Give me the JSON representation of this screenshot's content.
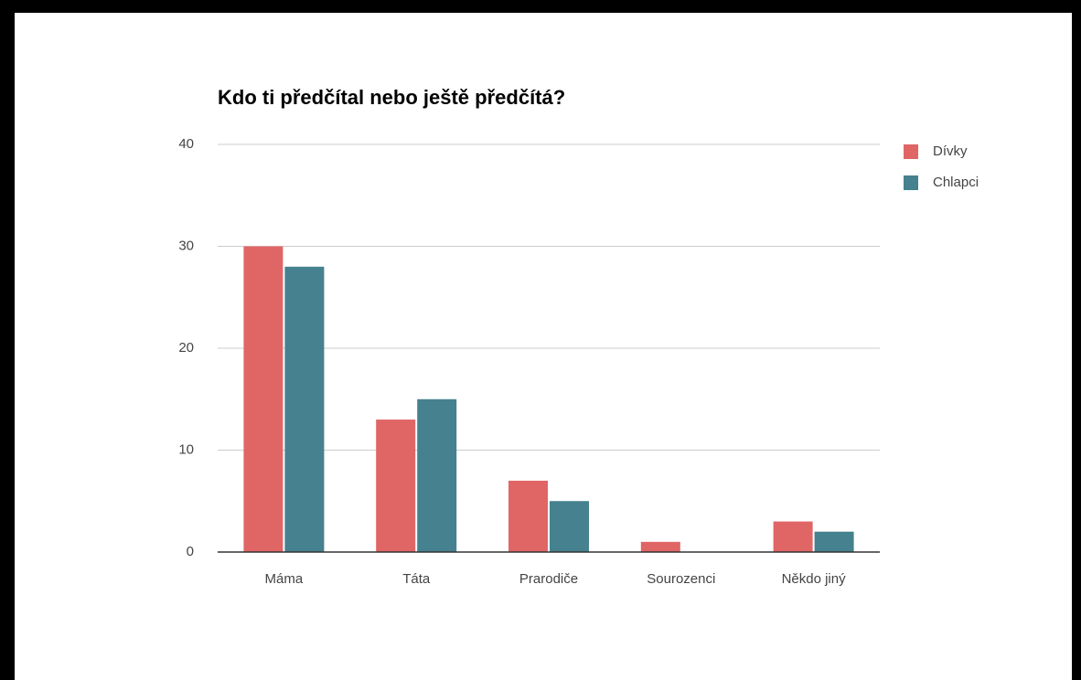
{
  "chart_data": {
    "type": "bar",
    "title": "Kdo ti předčítal nebo ještě předčítá?",
    "categories": [
      "Máma",
      "Táta",
      "Prarodiče",
      "Sourozenci",
      "Někdo jiný"
    ],
    "series": [
      {
        "name": "Dívky",
        "color": "#e06666",
        "values": [
          30,
          13,
          7,
          1,
          3
        ]
      },
      {
        "name": "Chlapci",
        "color": "#45818e",
        "values": [
          28,
          15,
          5,
          0,
          2
        ]
      }
    ],
    "ylim": [
      0,
      40
    ],
    "yticks": [
      0,
      10,
      20,
      30,
      40
    ],
    "grid": true,
    "legend": "right"
  }
}
